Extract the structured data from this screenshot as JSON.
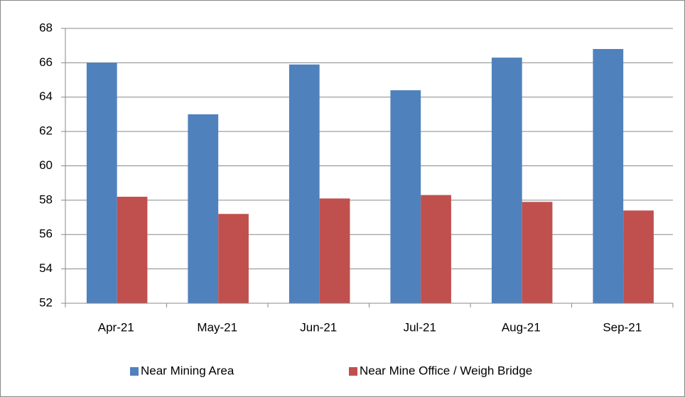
{
  "chart_data": {
    "type": "bar",
    "categories": [
      "Apr-21",
      "May-21",
      "Jun-21",
      "Jul-21",
      "Aug-21",
      "Sep-21"
    ],
    "series": [
      {
        "name": "Near Mining Area",
        "color": "#4f81bd",
        "values": [
          66.0,
          63.0,
          65.9,
          64.4,
          66.3,
          66.8
        ]
      },
      {
        "name": "Near Mine Office / Weigh Bridge",
        "color": "#c0504d",
        "values": [
          58.2,
          57.2,
          58.1,
          58.3,
          57.9,
          57.4
        ]
      }
    ],
    "ylim": [
      52,
      68
    ],
    "yticks": [
      52,
      54,
      56,
      58,
      60,
      62,
      64,
      66,
      68
    ],
    "grid": true,
    "legend": "bottom"
  }
}
